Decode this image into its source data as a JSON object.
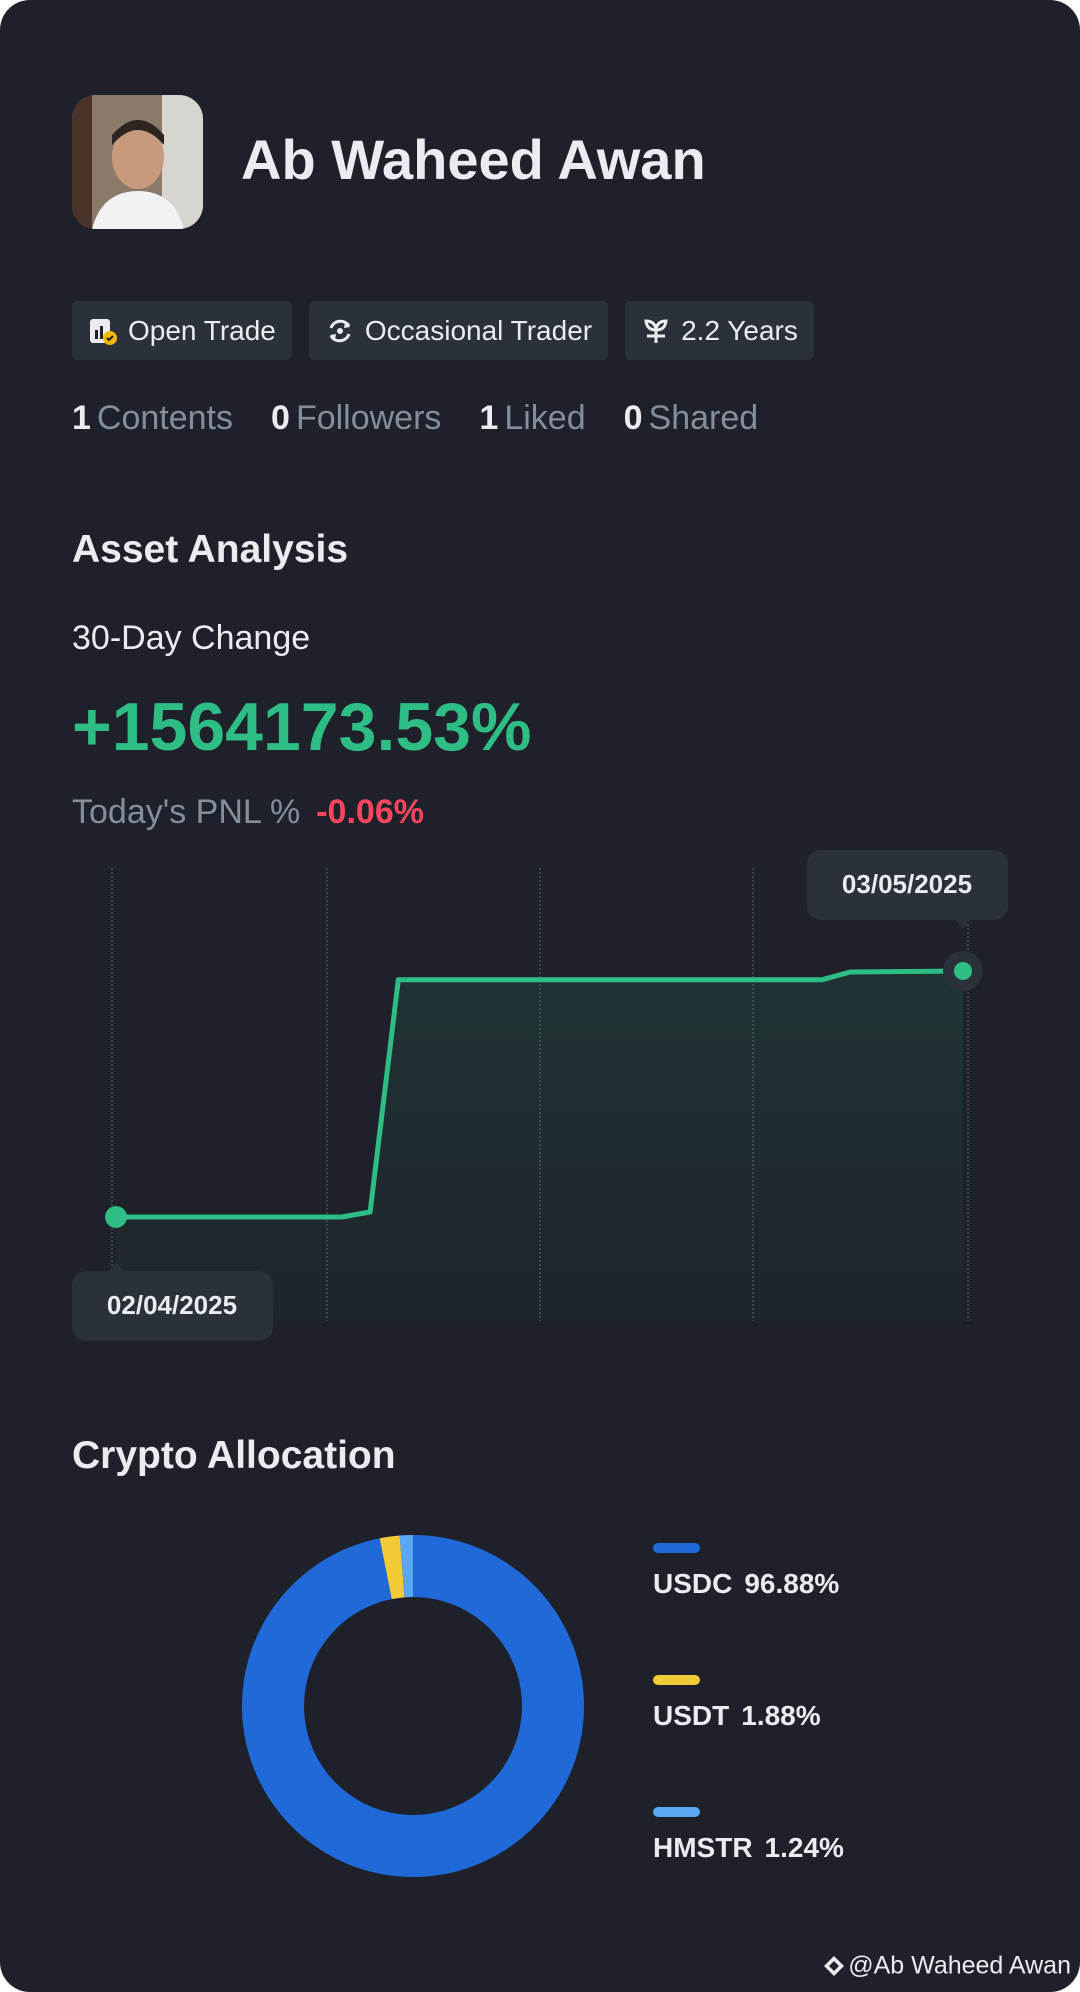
{
  "profile": {
    "name": "Ab Waheed Awan",
    "tags": [
      "Open Trade",
      "Occasional Trader",
      "2.2 Years"
    ],
    "stats": [
      {
        "value": 1,
        "label": "Contents"
      },
      {
        "value": 0,
        "label": "Followers"
      },
      {
        "value": 1,
        "label": "Liked"
      },
      {
        "value": 0,
        "label": "Shared"
      }
    ]
  },
  "asset_analysis": {
    "title": "Asset Analysis",
    "period": "30-Day Change",
    "change": "+1564173.53%",
    "pnl_label": "Today's PNL %",
    "pnl_value": "-0.06%"
  },
  "allocation_title": "Crypto Allocation",
  "watermark": "@Ab Waheed Awan",
  "chart_data": [
    {
      "type": "line",
      "color": "#2ebd85",
      "categories": [
        "02/04/2025",
        null,
        null,
        null,
        null,
        null,
        null,
        null,
        null,
        null,
        null,
        null,
        null,
        null,
        null,
        null,
        null,
        null,
        null,
        null,
        null,
        null,
        null,
        null,
        null,
        null,
        null,
        null,
        null,
        null,
        "03/05/2025"
      ],
      "values": [
        0,
        0,
        0,
        0,
        0,
        0,
        0,
        0,
        0,
        32000,
        1508000,
        1508000,
        1508000,
        1508000,
        1508000,
        1508000,
        1508000,
        1508000,
        1508000,
        1508000,
        1508000,
        1508000,
        1508000,
        1508000,
        1508000,
        1508000,
        1558000,
        1560000,
        1561000,
        1562000,
        1564173.53
      ]
    },
    {
      "type": "pie",
      "categories": [
        "USDC",
        "USDT",
        "HMSTR"
      ],
      "values": [
        96.88,
        1.88,
        1.24
      ],
      "value_labels": [
        "96.88%",
        "1.88%",
        "1.24%"
      ],
      "colors": [
        "#1f6ad8",
        "#f0cb35",
        "#5aa7f2"
      ]
    }
  ]
}
